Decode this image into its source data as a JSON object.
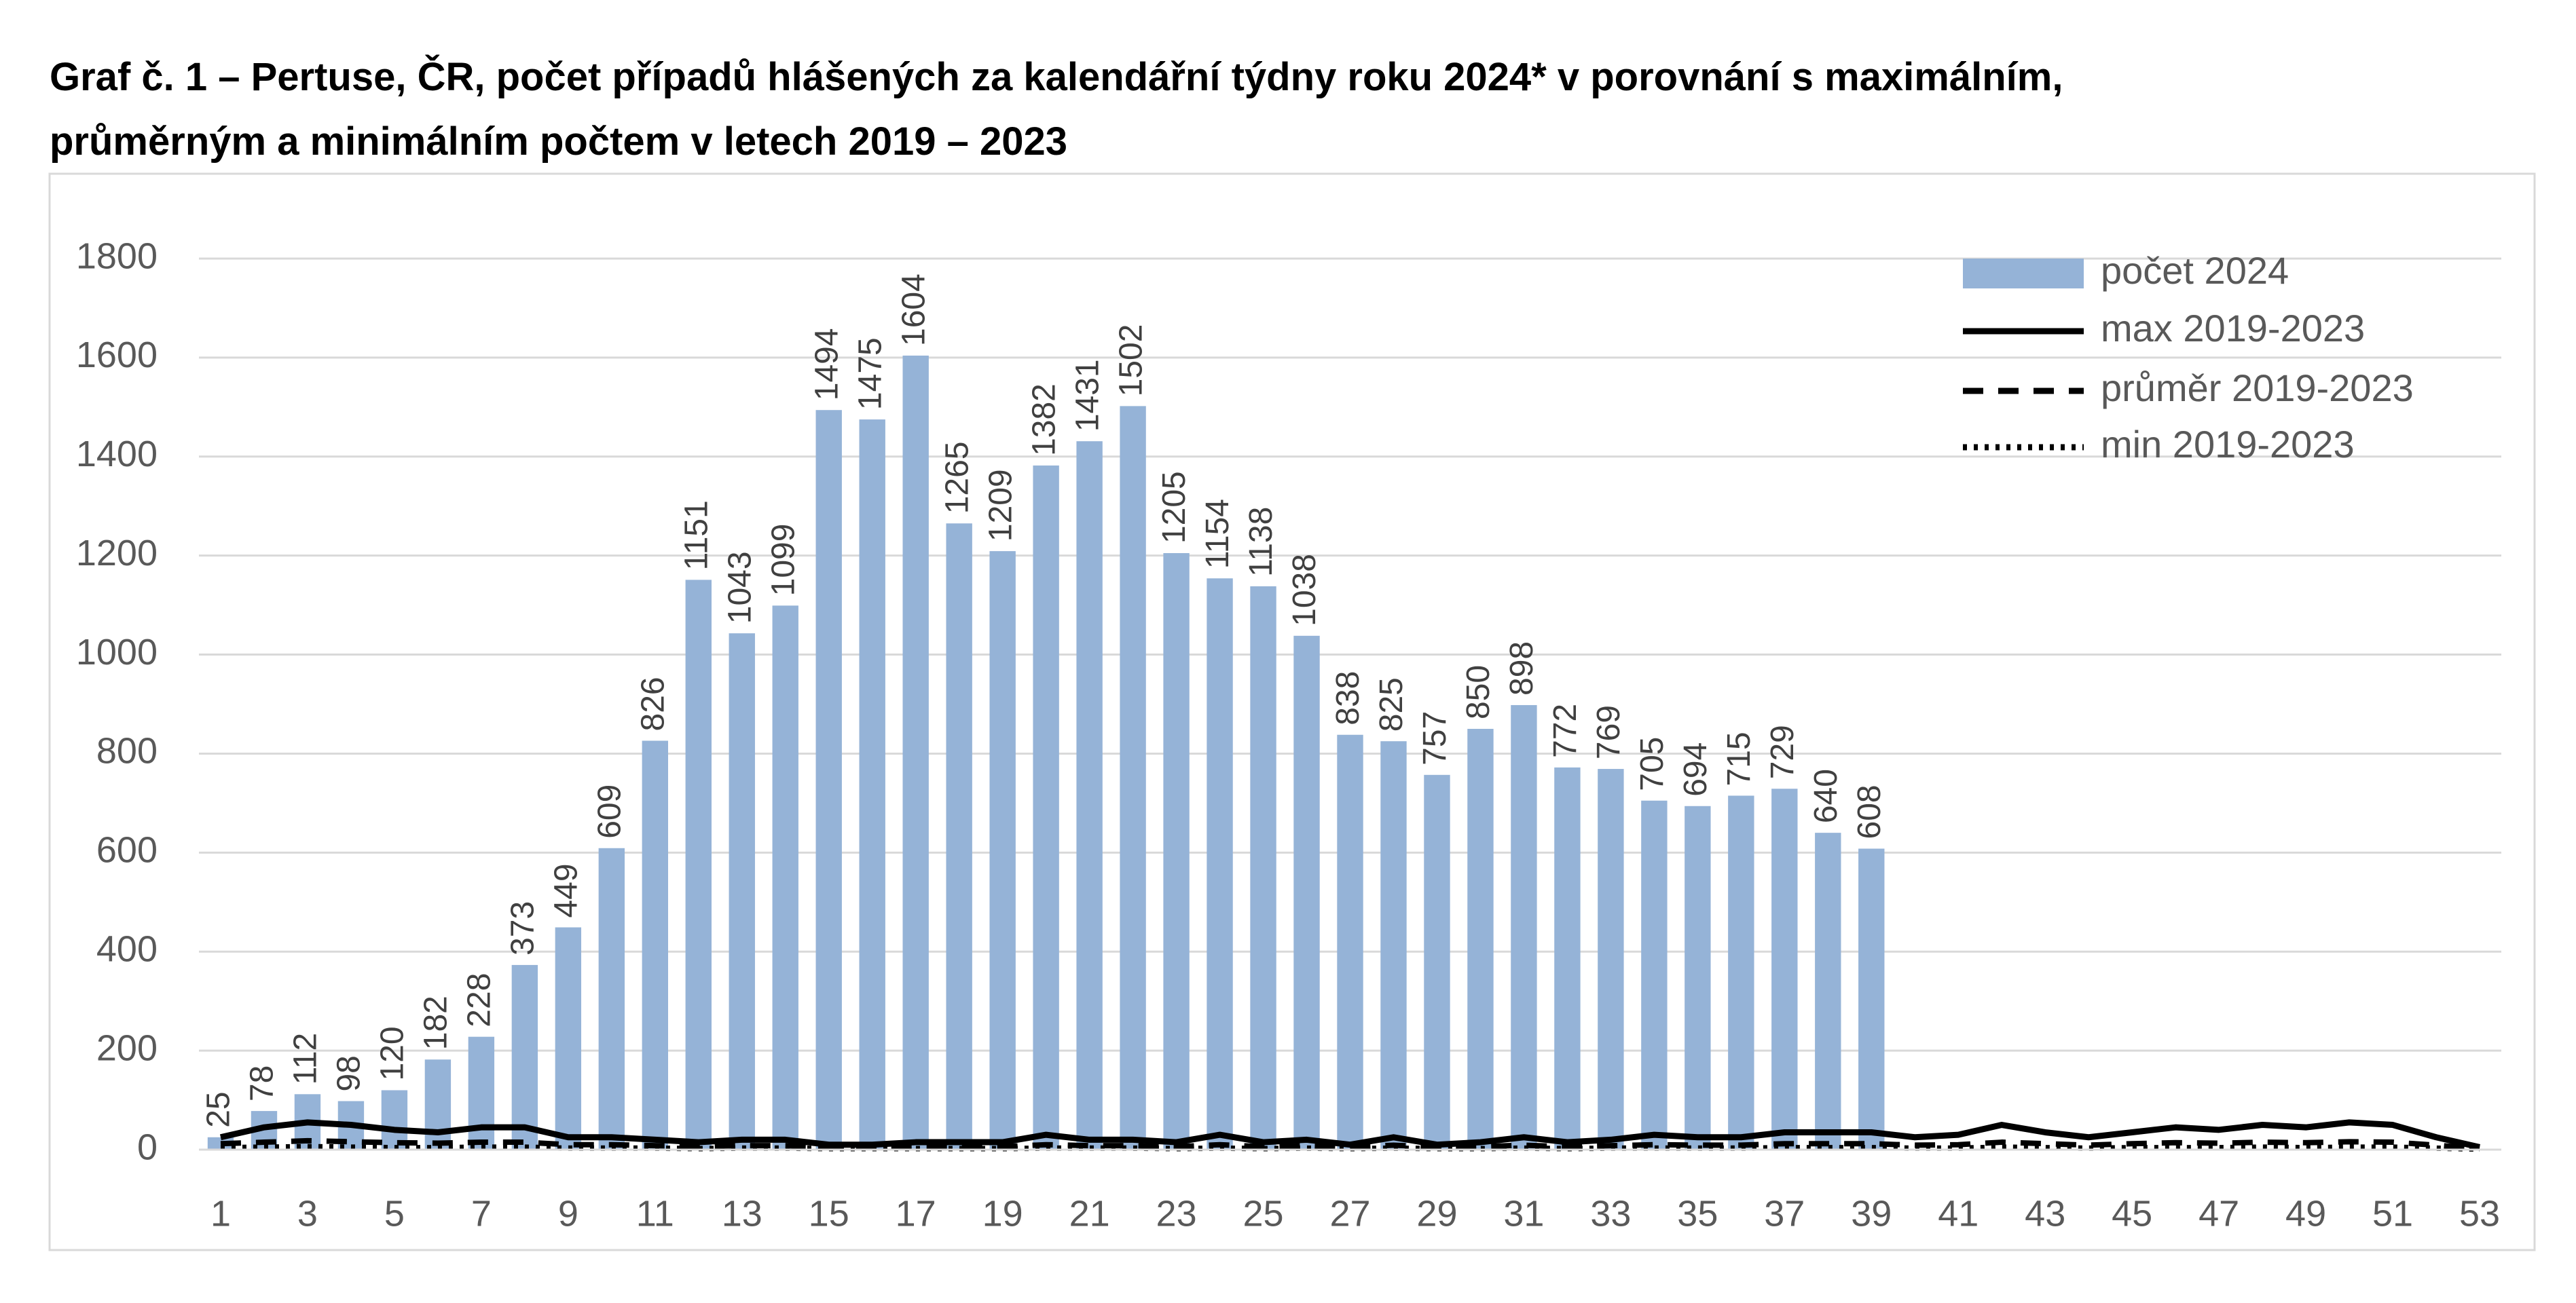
{
  "chart_data": {
    "type": "bar",
    "title": [
      "Graf č. 1 – Pertuse, ČR, počet případů hlášených za kalendářní týdny roku 2024* v porovnání s maximálním,",
      "průměrným a minimálním počtem v letech 2019 – 2023"
    ],
    "categories": [
      1,
      null,
      3,
      null,
      5,
      null,
      7,
      null,
      9,
      null,
      11,
      null,
      13,
      null,
      15,
      null,
      17,
      null,
      19,
      null,
      21,
      null,
      23,
      null,
      25,
      null,
      27,
      null,
      29,
      null,
      31,
      null,
      33,
      null,
      35,
      null,
      37,
      null,
      39,
      null,
      41,
      null,
      43,
      null,
      45,
      null,
      47,
      null,
      49,
      null,
      51,
      null,
      53
    ],
    "series": [
      {
        "name": "počet 2024",
        "type": "bar",
        "color": "#95b3d7",
        "values": [
          25,
          78,
          112,
          98,
          120,
          182,
          228,
          373,
          449,
          609,
          826,
          1151,
          1043,
          1099,
          1494,
          1475,
          1604,
          1265,
          1209,
          1382,
          1431,
          1502,
          1205,
          1154,
          1138,
          1038,
          838,
          825,
          757,
          850,
          898,
          772,
          769,
          705,
          694,
          715,
          729,
          640,
          608,
          null,
          null,
          null,
          null,
          null,
          null,
          null,
          null,
          null,
          null,
          null,
          null,
          null,
          null
        ]
      },
      {
        "name": "max 2019-2023",
        "type": "line",
        "line_style": "solid",
        "color": "#000000",
        "values": [
          25,
          45,
          55,
          50,
          40,
          35,
          45,
          45,
          25,
          25,
          20,
          15,
          20,
          20,
          10,
          10,
          15,
          15,
          15,
          30,
          20,
          20,
          15,
          30,
          15,
          20,
          10,
          25,
          10,
          15,
          25,
          15,
          20,
          30,
          25,
          25,
          35,
          35,
          35,
          25,
          30,
          50,
          35,
          25,
          35,
          45,
          40,
          50,
          45,
          55,
          50,
          25,
          5
        ]
      },
      {
        "name": "průměr 2019-2023",
        "type": "line",
        "line_style": "dashed",
        "color": "#000000",
        "values": [
          12,
          15,
          18,
          16,
          14,
          13,
          15,
          15,
          10,
          10,
          8,
          7,
          8,
          8,
          5,
          5,
          6,
          6,
          6,
          10,
          8,
          8,
          6,
          10,
          6,
          8,
          5,
          9,
          5,
          6,
          9,
          6,
          8,
          10,
          9,
          9,
          12,
          12,
          12,
          9,
          10,
          15,
          12,
          9,
          12,
          14,
          13,
          15,
          14,
          16,
          15,
          9,
          2
        ]
      },
      {
        "name": "min 2019-2023",
        "type": "line",
        "line_style": "dotted",
        "color": "#000000",
        "values": [
          4,
          5,
          6,
          5,
          4,
          4,
          5,
          5,
          3,
          3,
          3,
          2,
          3,
          3,
          2,
          2,
          2,
          2,
          2,
          3,
          3,
          3,
          2,
          3,
          2,
          3,
          2,
          3,
          2,
          2,
          3,
          2,
          3,
          3,
          3,
          3,
          4,
          4,
          4,
          3,
          3,
          5,
          4,
          3,
          4,
          4,
          4,
          5,
          4,
          5,
          5,
          3,
          1
        ]
      }
    ],
    "ylim": [
      0,
      1800
    ],
    "yticks": [
      0,
      200,
      400,
      600,
      800,
      1000,
      1200,
      1400,
      1600,
      1800
    ],
    "grid": true,
    "legend": "upper right"
  }
}
